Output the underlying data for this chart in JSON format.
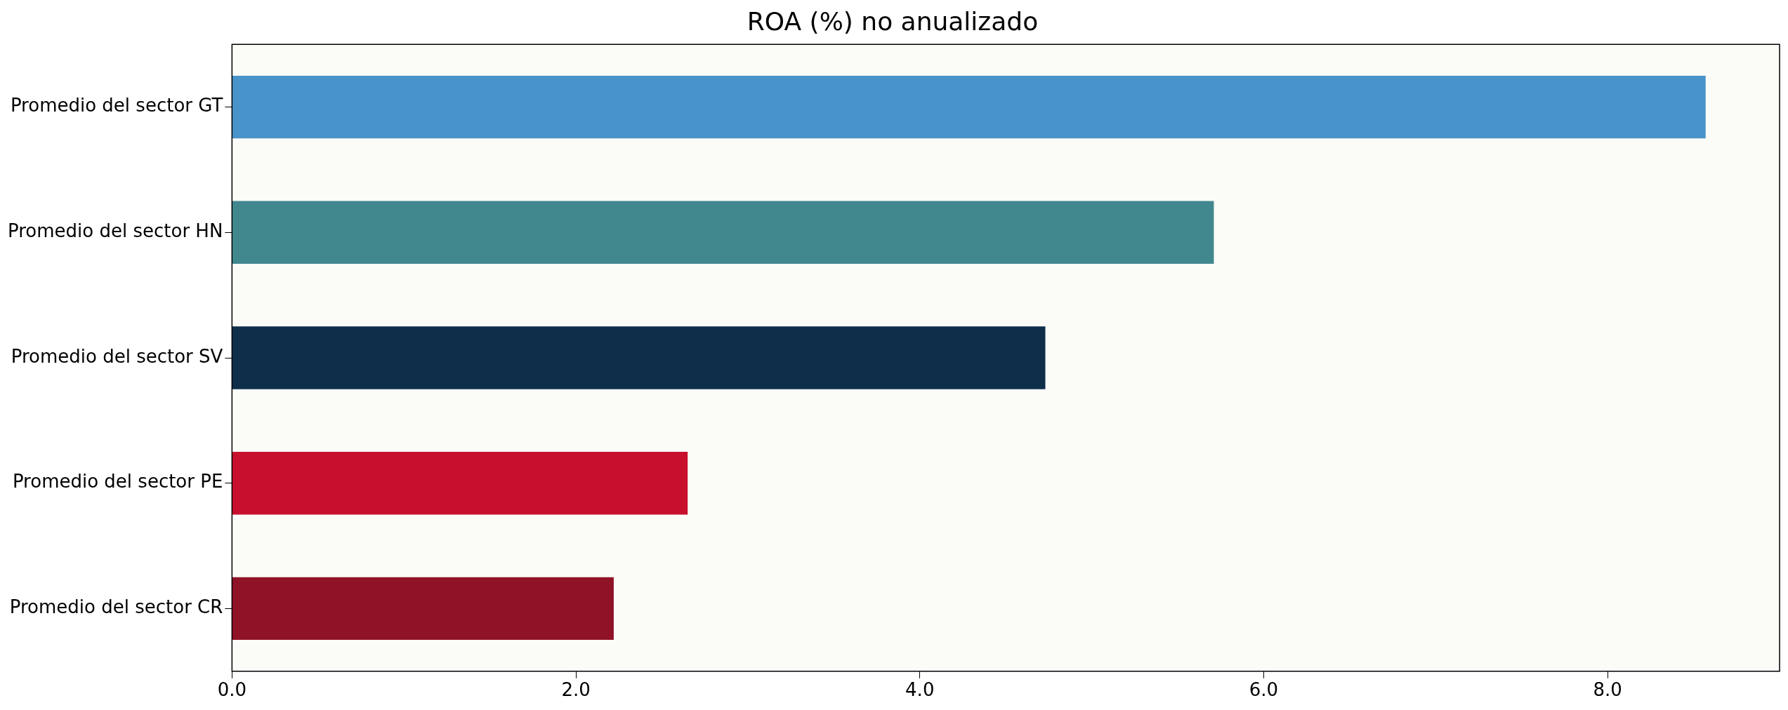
{
  "chart_data": {
    "type": "bar",
    "orientation": "horizontal",
    "title": "ROA (%) no anualizado",
    "categories": [
      "Promedio del sector GT",
      "Promedio del sector HN",
      "Promedio del sector SV",
      "Promedio del sector PE",
      "Promedio del sector CR"
    ],
    "values": [
      8.57,
      5.71,
      4.73,
      2.65,
      2.22
    ],
    "colors": [
      "#4893c9",
      "#40888e",
      "#0e2e4a",
      "#c8102e",
      "#901226"
    ],
    "xlim": [
      0,
      9.0
    ],
    "xticks": [
      {
        "value": 0,
        "label": "0.0"
      },
      {
        "value": 2,
        "label": "2.0"
      },
      {
        "value": 4,
        "label": "4.0"
      },
      {
        "value": 6,
        "label": "6.0"
      },
      {
        "value": 8,
        "label": "8.0"
      }
    ],
    "grid": false,
    "legend": false
  }
}
